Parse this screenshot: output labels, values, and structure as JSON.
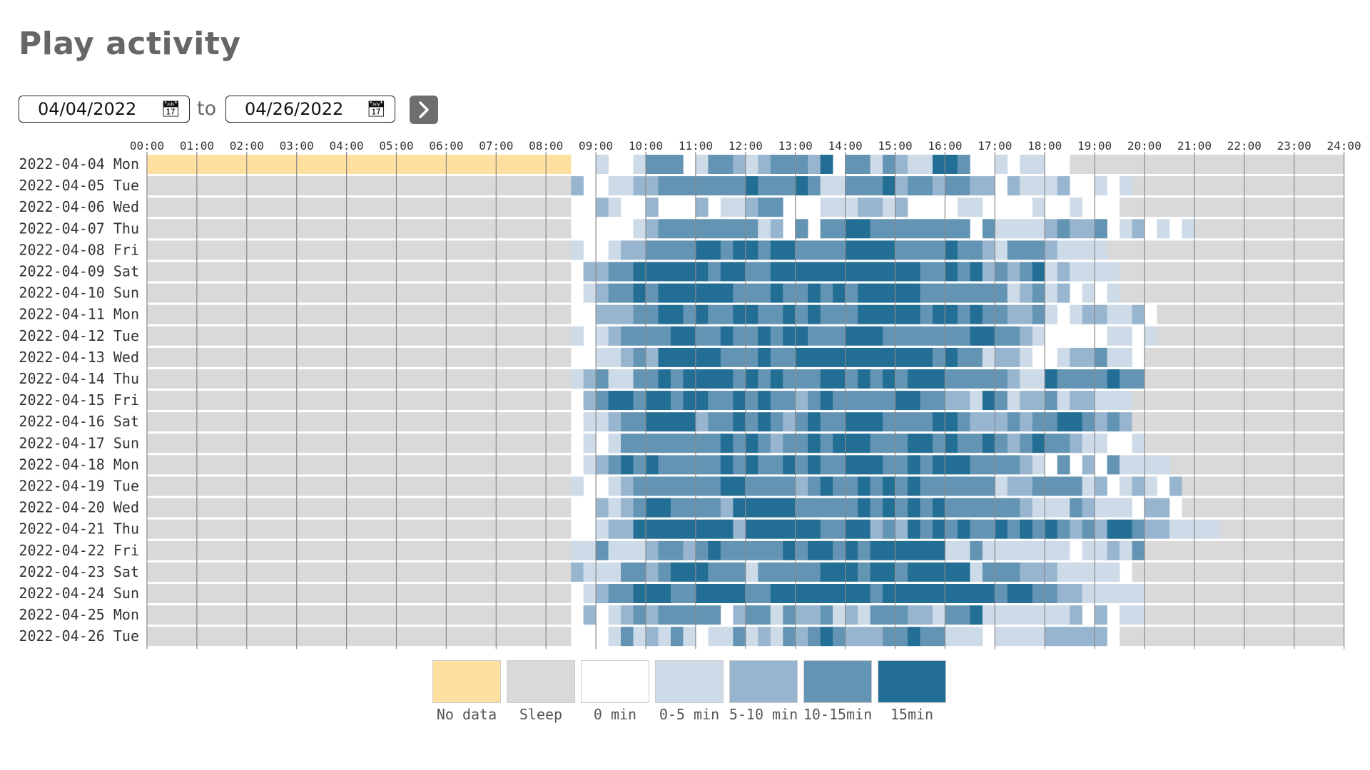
{
  "title": "Play activity",
  "date_range": {
    "start": "04/04/2022",
    "to_label": "to",
    "end": "04/26/2022"
  },
  "chart_data": {
    "type": "heatmap",
    "title": "Play activity",
    "x_tick_labels": [
      "00:00",
      "01:00",
      "02:00",
      "03:00",
      "04:00",
      "05:00",
      "06:00",
      "07:00",
      "08:00",
      "09:00",
      "10:00",
      "11:00",
      "12:00",
      "13:00",
      "14:00",
      "15:00",
      "16:00",
      "17:00",
      "18:00",
      "19:00",
      "20:00",
      "21:00",
      "22:00",
      "23:00",
      "24:00"
    ],
    "slots_per_hour": 4,
    "rows": [
      {
        "label": "2022-04-04 Mon",
        "values": "NNNNNNNNNNNNNNNNNNNNNNNNNNNNNNNNNN0010013330133212333240331321144300101100SSSSSSSSSSSSS"
      },
      {
        "label": "2022-04-05 Tue",
        "values": "SSSSSSSSSSSSSSSSSSSSSSSSSSSSSSSSSS200112233333334333431133342332332202111200101SSSSSSSSSSSS"
      },
      {
        "label": "2022-04-06 Wed",
        "values": "SSSSSSSSSSSSSSSSSSSSSSSSSSSSSSSSSS00210020002011233000111221200001100001001000SSSSSSSSSSSS"
      },
      {
        "label": "2022-04-07 Thu",
        "values": "SSSSSSSSSSSSSSSSSSSSSSSSSSSSSSSSSS00000123333333312030334433333333031111232230120101SSSSSSSSSSSS"
      },
      {
        "label": "2022-04-08 Fri",
        "values": "SSSSSSSSSSSSSSSSSSSSSSSSSSSSSSSSSS1001223333443443443333444433334332133321111SSSSSSSSSSSS"
      },
      {
        "label": "2022-04-09 Sat",
        "values": "SSSSSSSSSSSSSSSSSSSSSSSSSSSSSSSSSS02233444444344334444444444443343423234121111SSSSSSSSSSSS"
      },
      {
        "label": "2022-04-10 Sun",
        "values": "SSSSSSSSSSSSSSSSSSSSSSSSSSSSSSSSSS01233434444443334334343444443333333123120101SSSSSSSSSSSS"
      },
      {
        "label": "2022-04-11 Mon",
        "values": "SSSSSSSSSSSSSSSSSSSSSSSSSSSSSSSSSS00222334434334433434333444443443433223101221120SSSSSSSSSSSS"
      },
      {
        "label": "2022-04-12 Tue",
        "values": "SSSSSSSSSSSSSSSSSSSSSSSSSSSSSSSSSS10123333443343343443334443333333443321000001101SSSSSSSSSSSS"
      },
      {
        "label": "2022-04-13 Wed",
        "values": "SSSSSSSSSSSSSSSSSSSSSSSSSSSSSSSSSS0011232444443334334444444444434331221001223110SSSSSSSSSSSS"
      },
      {
        "label": "2022-04-14 Thu",
        "values": "SSSSSSSSSSSSSSSSSSSSSSSSSSSSSSSSSS1231133434444343433344343434443333321143333433SSSSSSSSSSSS"
      },
      {
        "label": "2022-04-15 Fri",
        "values": "SSSSSSSSSSSSSSSSSSSSSSSSSSSSSSSSSS023443443443343433234333334433221431223122111SSSSSSSSSSSS"
      },
      {
        "label": "2022-04-16 Sat",
        "values": "SSSSSSSSSSSSSSSSSSSSSSSSSSSSSSSSSS011233444423343432343344433334432223233443232SSSSSSSSSSSS"
      },
      {
        "label": "2022-04-17 Sun",
        "values": "SSSSSSSSSSSSSSSSSSSSSSSSSSSSSSSSSS0101333333334343233434443334434334323433211001SSSSSSSSSSSS"
      },
      {
        "label": "2022-04-18 Mon",
        "values": "SSSSSSSSSSSSSSSSSSSSSSSSSSSSSSSSSS012343433333434334343344433434443333210302031111SSSSSSSSSSSS"
      },
      {
        "label": "2022-04-19 Tue",
        "values": "SSSSSSSSSSSSSSSSSSSSSSSSSSSSSSSSSS1001233333334433332343343434333333122333312012102SSSSSSSSSSSS"
      },
      {
        "label": "2022-04-20 Wed",
        "values": "SSSSSSSSSSSSSSSSSSSSSSSSSSSSSSSSSS0021234433332444443333343434343333332111321110220SSSSSSSSSSSS"
      },
      {
        "label": "2022-04-21 Thu",
        "values": "SSSSSSSSSSSSSSSSSSSSSSSSSSSSSSSSSS0012244444444244444433442324343433434343232443221111SSSSSSSSSSSS"
      },
      {
        "label": "2022-04-22 Fri",
        "values": "SSSSSSSSSSSSSSSSSSSSSSSSSSSSSSSSSS1131112332343333343443434444441131111111011213SSSSSSSSSSSS"
      },
      {
        "label": "2022-04-23 Sat",
        "values": "SSSSSSSSSSSSSSSSSSSSSSSSSSSSSSSSSS211133234443331333334443443444441333222111110SSSSSSSSSSSS"
      },
      {
        "label": "2022-04-24 Sun",
        "values": "SSSSSSSSSSSSSSSSSSSSSSSSSSSSSSSSSS0123344433444433444444443444444444344332211111SSSSSSSSSSSS"
      },
      {
        "label": "2022-04-25 Mon",
        "values": "SSSSSSSSSSSSSSSSSSSSSSSSSSSSSSSSSS0201232333330233132231213332213341111111202011SSSSSSSSSSSS"
      },
      {
        "label": "2022-04-26 Tue",
        "values": "SSSSSSSSSSSSSSSSSSSSSSSSSSSSSSSSSS00013121310113121323432223343311101111222220SSSSSSSSSSSS"
      }
    ],
    "legend": [
      {
        "key": "N",
        "label": "No data",
        "color": "#ffe0a0"
      },
      {
        "key": "S",
        "label": "Sleep",
        "color": "#d9d9d9"
      },
      {
        "key": "0",
        "label": "0 min",
        "color": "#ffffff"
      },
      {
        "key": "1",
        "label": "0-5 min",
        "color": "#ccdbe7"
      },
      {
        "key": "2",
        "label": "5-10 min",
        "color": "#98b5cf"
      },
      {
        "key": "3",
        "label": "10-15min",
        "color": "#6494b3"
      },
      {
        "key": "4",
        "label": "15min",
        "color": "#236e94"
      }
    ]
  }
}
